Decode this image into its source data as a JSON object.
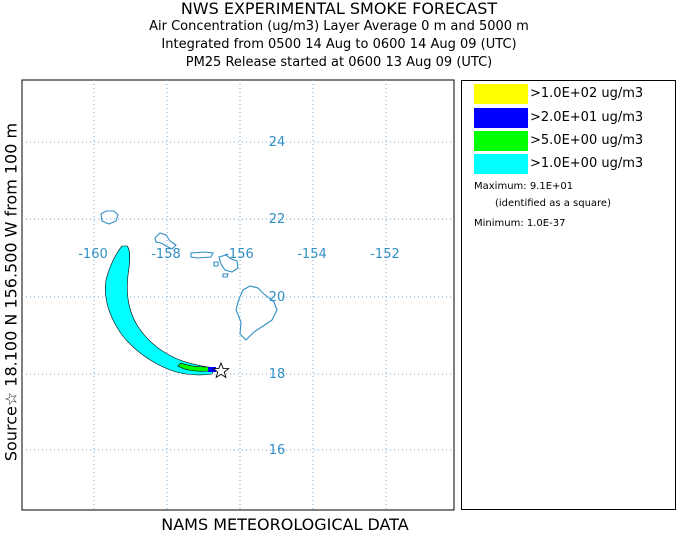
{
  "header": {
    "title": "NWS EXPERIMENTAL SMOKE FORECAST",
    "line1": "Air Concentration (ug/m3) Layer Average    0 m and  5000 m",
    "line2": "Integrated from 0500 14 Aug to 0600 14 Aug 09 (UTC)",
    "line3": "PM25 Release started at 0600 13 Aug 09 (UTC)"
  },
  "side_label": "Source☆ 18.100 N 156.500 W        from   100 m",
  "footer": "NAMS METEOROLOGICAL DATA",
  "map": {
    "lon_labels": [
      "-160",
      "-158",
      "-156",
      "-154",
      "-152"
    ],
    "lat_labels": [
      "24",
      "22",
      "20",
      "18",
      "16"
    ],
    "grid_color": "#6fa7d6",
    "coast_color": "#2f8fc4",
    "plume_color": "#00ffff",
    "inner_color": "#00ff00",
    "source_marker": "star-icon"
  },
  "legend": {
    "items": [
      {
        "label": ">1.0E+02 ug/m3",
        "color": "#ffff00"
      },
      {
        "label": ">2.0E+01 ug/m3",
        "color": "#0000ff"
      },
      {
        "label": ">5.0E+00 ug/m3",
        "color": "#00ff00"
      },
      {
        "label": ">1.0E+00 ug/m3",
        "color": "#00ffff"
      }
    ],
    "maximum": "Maximum: 9.1E+01",
    "maximum_note": "(identified as a square)",
    "minimum": "Minimum: 1.0E-37"
  }
}
